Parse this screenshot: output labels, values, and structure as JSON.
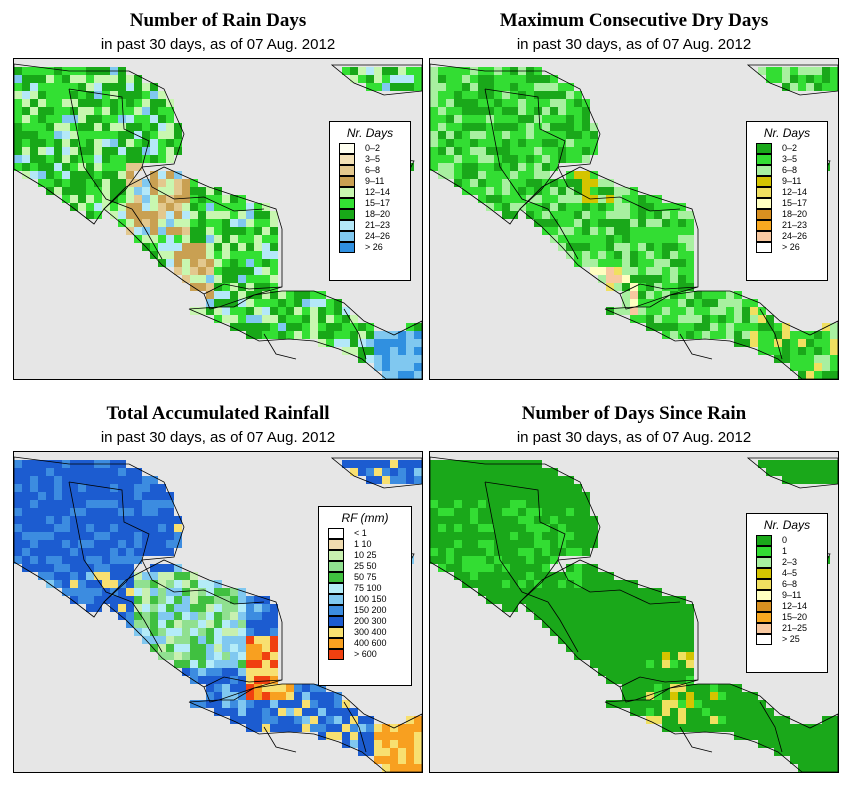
{
  "panels": [
    {
      "title": "Number of Rain Days",
      "subtitle": "in past 30 days, as of  07 Aug. 2012",
      "legend_title": "Nr. Days",
      "scheme": "raindays",
      "legend": [
        {
          "label": "0–2",
          "color": "#fffff0"
        },
        {
          "label": "3–5",
          "color": "#f3e1b6"
        },
        {
          "label": "6–8",
          "color": "#e3c88e"
        },
        {
          "label": "9–11",
          "color": "#c9a052"
        },
        {
          "label": "12–14",
          "color": "#c8f7b0"
        },
        {
          "label": "15–17",
          "color": "#33e033"
        },
        {
          "label": "18–20",
          "color": "#18a818"
        },
        {
          "label": "21–23",
          "color": "#b4e8f8"
        },
        {
          "label": "24–26",
          "color": "#80c8f0"
        },
        {
          "label": "> 26",
          "color": "#3090e0"
        }
      ]
    },
    {
      "title": "Maximum Consecutive Dry Days",
      "subtitle": "in past 30 days, as of  07 Aug. 2012",
      "legend_title": "Nr. Days",
      "scheme": "drydays",
      "legend": [
        {
          "label": "0–2",
          "color": "#1aa81a"
        },
        {
          "label": "3–5",
          "color": "#33dd33"
        },
        {
          "label": "6–8",
          "color": "#a8f0a0"
        },
        {
          "label": "9–11",
          "color": "#d4c400"
        },
        {
          "label": "12–14",
          "color": "#f0e060"
        },
        {
          "label": "15–17",
          "color": "#ffffc0"
        },
        {
          "label": "18–20",
          "color": "#d89020"
        },
        {
          "label": "21–23",
          "color": "#f8a820"
        },
        {
          "label": "24–26",
          "color": "#f8c8a0"
        },
        {
          "label": "> 26",
          "color": "#ffffff"
        }
      ]
    },
    {
      "title": "Total Accumulated Rainfall",
      "subtitle": "in past 30 days, as of  07 Aug. 2012",
      "legend_title": "RF (mm)",
      "scheme": "rainfall",
      "legend": [
        {
          "label": "< 1",
          "color": "#ffffff"
        },
        {
          "label": "1   10",
          "color": "#f0dcb0"
        },
        {
          "label": "10   25",
          "color": "#c8f0b0"
        },
        {
          "label": "25   50",
          "color": "#90e090"
        },
        {
          "label": "50   75",
          "color": "#40c040"
        },
        {
          "label": "75   100",
          "color": "#b4ecf8"
        },
        {
          "label": "100   150",
          "color": "#80c8f0"
        },
        {
          "label": "150   200",
          "color": "#3c8ce0"
        },
        {
          "label": "200   300",
          "color": "#1c5cd0"
        },
        {
          "label": "300   400",
          "color": "#f8e070"
        },
        {
          "label": "400   600",
          "color": "#f8a020"
        },
        {
          "label": "> 600",
          "color": "#f04010"
        }
      ]
    },
    {
      "title": "Number of Days Since Rain",
      "subtitle": "in past 30 days, as of  07 Aug. 2012",
      "legend_title": "Nr. Days",
      "scheme": "sincerain",
      "legend": [
        {
          "label": "0",
          "color": "#1aa81a"
        },
        {
          "label": "1",
          "color": "#33dd33"
        },
        {
          "label": "2–3",
          "color": "#a8f0a0"
        },
        {
          "label": "4–5",
          "color": "#d4c400"
        },
        {
          "label": "6–8",
          "color": "#f0e060"
        },
        {
          "label": "9–11",
          "color": "#ffffc0"
        },
        {
          "label": "12–14",
          "color": "#d89020"
        },
        {
          "label": "15–20",
          "color": "#f8a820"
        },
        {
          "label": "21–25",
          "color": "#f8c8a0"
        },
        {
          "label": "> 25",
          "color": "#ffffff"
        }
      ]
    }
  ],
  "colors": {
    "ocean": "#e6e6e6",
    "border": "#000000"
  }
}
